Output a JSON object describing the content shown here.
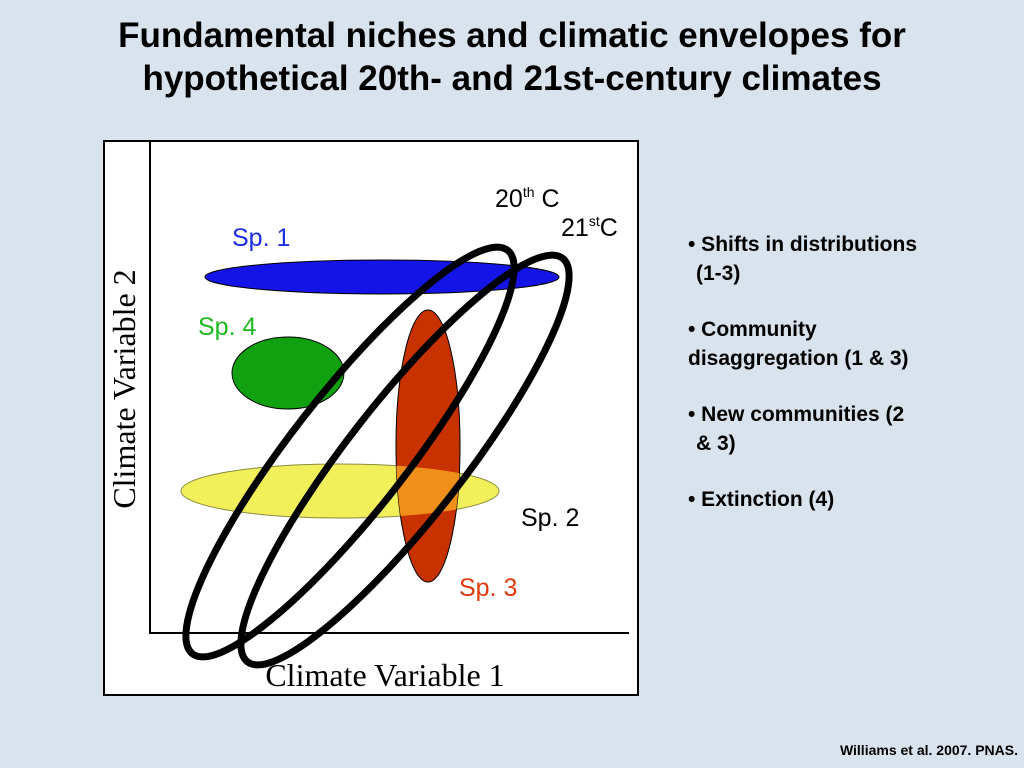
{
  "title": {
    "line1": "Fundamental niches and climatic envelopes for",
    "line2": "hypothetical 20th- and 21st-century climates"
  },
  "figure": {
    "x_axis_label": "Climate Variable 1",
    "y_axis_label": "Climate Variable 2",
    "labels": {
      "c20": {
        "base": "20",
        "sup": "th",
        "rest": " C"
      },
      "c21": {
        "base": "21",
        "sup": "st",
        "rest": "C"
      },
      "sp1": "Sp. 1",
      "sp2": "Sp. 2",
      "sp3": "Sp. 3",
      "sp4": "Sp. 4"
    },
    "colors": {
      "sp1": "#1414e6",
      "sp2": "#f2f05a",
      "sp3": "#c83200",
      "sp4": "#10a010",
      "sp1_label": "#1a2ee0",
      "sp4_label": "#1fb81f",
      "sp3_label": "#dd3a10",
      "overlap_sp1_sp3": "#7a1ae0",
      "overlap_sp2_sp3": "#f0901a",
      "envelope": "#000000"
    }
  },
  "bullets": [
    {
      "line1": "• Shifts in distributions",
      "line2": "(1-3)"
    },
    {
      "line1": "• Community",
      "line2": "disaggregation (1 & 3)"
    },
    {
      "line1": "• New communities (2",
      "line2": "& 3)"
    },
    {
      "line1": "• Extinction (4)",
      "line2": ""
    }
  ],
  "citation": "Williams et al. 2007. PNAS."
}
